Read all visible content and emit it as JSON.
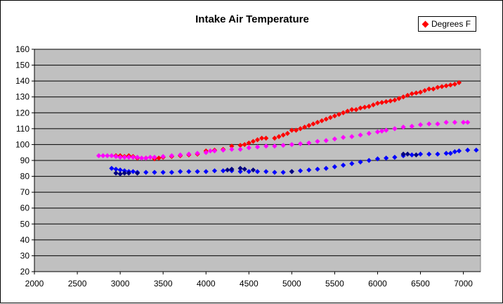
{
  "chart_data": {
    "type": "scatter",
    "title": "Intake Air Temperature",
    "xlabel": "",
    "ylabel": "",
    "xlim": [
      2000,
      7200
    ],
    "ylim": [
      20,
      160
    ],
    "xticks": [
      2000,
      2500,
      3000,
      3500,
      4000,
      4500,
      5000,
      5500,
      6000,
      6500,
      7000
    ],
    "yticks": [
      20,
      30,
      40,
      50,
      60,
      70,
      80,
      90,
      100,
      110,
      120,
      130,
      140,
      150,
      160
    ],
    "grid": "horizontal",
    "legend_position": "top-right",
    "plot_background": "#C0C0C0",
    "series": [
      {
        "name": "Degrees F",
        "color": "#FF0000",
        "marker": "diamond",
        "points": [
          [
            2950,
            93
          ],
          [
            3000,
            93
          ],
          [
            3050,
            92.5
          ],
          [
            3100,
            93
          ],
          [
            3150,
            92.5
          ],
          [
            3200,
            91.5
          ],
          [
            3300,
            91.5
          ],
          [
            3400,
            91
          ],
          [
            3450,
            91.5
          ],
          [
            3500,
            92
          ],
          [
            3600,
            92.5
          ],
          [
            3700,
            93
          ],
          [
            3800,
            93.5
          ],
          [
            3900,
            94
          ],
          [
            4000,
            96
          ],
          [
            4100,
            96.5
          ],
          [
            4200,
            97
          ],
          [
            4300,
            99
          ],
          [
            4400,
            99.5
          ],
          [
            4450,
            100
          ],
          [
            4500,
            101
          ],
          [
            4550,
            102
          ],
          [
            4600,
            103
          ],
          [
            4650,
            104
          ],
          [
            4700,
            104
          ],
          [
            4800,
            104
          ],
          [
            4850,
            105
          ],
          [
            4900,
            106
          ],
          [
            4950,
            107
          ],
          [
            5000,
            109
          ],
          [
            5050,
            109
          ],
          [
            5100,
            110
          ],
          [
            5150,
            111
          ],
          [
            5200,
            112
          ],
          [
            5250,
            113
          ],
          [
            5300,
            114
          ],
          [
            5350,
            115
          ],
          [
            5400,
            116
          ],
          [
            5450,
            117
          ],
          [
            5500,
            118
          ],
          [
            5550,
            119
          ],
          [
            5600,
            120
          ],
          [
            5650,
            121
          ],
          [
            5700,
            122
          ],
          [
            5750,
            122
          ],
          [
            5800,
            123
          ],
          [
            5850,
            123.5
          ],
          [
            5900,
            124
          ],
          [
            5950,
            125
          ],
          [
            6000,
            126
          ],
          [
            6050,
            126.5
          ],
          [
            6100,
            127
          ],
          [
            6150,
            127.5
          ],
          [
            6200,
            128
          ],
          [
            6250,
            129
          ],
          [
            6300,
            130
          ],
          [
            6350,
            131
          ],
          [
            6400,
            132
          ],
          [
            6450,
            132.5
          ],
          [
            6500,
            133
          ],
          [
            6550,
            134
          ],
          [
            6600,
            135
          ],
          [
            6650,
            135
          ],
          [
            6700,
            136
          ],
          [
            6750,
            136.5
          ],
          [
            6800,
            137
          ],
          [
            6850,
            137.5
          ],
          [
            6900,
            138
          ],
          [
            6950,
            139
          ]
        ]
      },
      {
        "color": "#FF00FF",
        "marker": "diamond",
        "points": [
          [
            2750,
            93
          ],
          [
            2800,
            93
          ],
          [
            2850,
            93
          ],
          [
            2900,
            93
          ],
          [
            2950,
            92.5
          ],
          [
            3000,
            92
          ],
          [
            3050,
            92
          ],
          [
            3100,
            92
          ],
          [
            3150,
            92
          ],
          [
            3200,
            92
          ],
          [
            3250,
            91.5
          ],
          [
            3300,
            91.5
          ],
          [
            3350,
            92
          ],
          [
            3400,
            92
          ],
          [
            3500,
            92.5
          ],
          [
            3600,
            93
          ],
          [
            3700,
            93.5
          ],
          [
            3800,
            94
          ],
          [
            3900,
            94.5
          ],
          [
            4000,
            95
          ],
          [
            4050,
            96
          ],
          [
            4100,
            96
          ],
          [
            4200,
            96.5
          ],
          [
            4300,
            97
          ],
          [
            4400,
            97
          ],
          [
            4500,
            98
          ],
          [
            4600,
            98.5
          ],
          [
            4700,
            99
          ],
          [
            4800,
            99
          ],
          [
            4900,
            99.5
          ],
          [
            5000,
            100
          ],
          [
            5100,
            100.5
          ],
          [
            5200,
            101
          ],
          [
            5300,
            102
          ],
          [
            5400,
            102.5
          ],
          [
            5500,
            103.5
          ],
          [
            5600,
            104.5
          ],
          [
            5700,
            105
          ],
          [
            5800,
            106
          ],
          [
            5900,
            107
          ],
          [
            6000,
            108
          ],
          [
            6050,
            108.5
          ],
          [
            6100,
            109
          ],
          [
            6200,
            110
          ],
          [
            6300,
            111
          ],
          [
            6400,
            111.5
          ],
          [
            6500,
            112.5
          ],
          [
            6600,
            113
          ],
          [
            6700,
            113
          ],
          [
            6800,
            114
          ],
          [
            6900,
            114
          ],
          [
            7000,
            114
          ],
          [
            7050,
            114
          ]
        ]
      },
      {
        "color": "#0000FF",
        "marker": "diamond",
        "points": [
          [
            2900,
            85
          ],
          [
            2950,
            84.5
          ],
          [
            3000,
            84
          ],
          [
            3050,
            83.5
          ],
          [
            3100,
            83
          ],
          [
            3150,
            83
          ],
          [
            3200,
            82.5
          ],
          [
            3300,
            82.5
          ],
          [
            3400,
            82.5
          ],
          [
            3500,
            82.5
          ],
          [
            3600,
            82.5
          ],
          [
            3700,
            83
          ],
          [
            3800,
            83
          ],
          [
            3900,
            83
          ],
          [
            4000,
            83
          ],
          [
            4100,
            83.5
          ],
          [
            4200,
            83.5
          ],
          [
            4300,
            83.5
          ],
          [
            4400,
            83
          ],
          [
            4500,
            83
          ],
          [
            4600,
            83
          ],
          [
            4700,
            83
          ],
          [
            4800,
            82.5
          ],
          [
            4900,
            82.5
          ],
          [
            5000,
            83
          ],
          [
            5100,
            83.5
          ],
          [
            5200,
            84
          ],
          [
            5300,
            84.5
          ],
          [
            5400,
            85
          ],
          [
            5500,
            86
          ],
          [
            5600,
            87
          ],
          [
            5700,
            88
          ],
          [
            5800,
            89
          ],
          [
            5900,
            90
          ],
          [
            6000,
            91
          ],
          [
            6100,
            91.5
          ],
          [
            6200,
            92
          ],
          [
            6300,
            93
          ],
          [
            6400,
            93.5
          ],
          [
            6500,
            94
          ],
          [
            6600,
            94
          ],
          [
            6700,
            94
          ],
          [
            6800,
            94.5
          ],
          [
            6850,
            94.5
          ],
          [
            6900,
            95.5
          ],
          [
            6950,
            96
          ],
          [
            7050,
            96.5
          ],
          [
            7150,
            96.5
          ]
        ]
      },
      {
        "color": "#000080",
        "marker": "diamond",
        "points": [
          [
            2950,
            82
          ],
          [
            3000,
            81.5
          ],
          [
            3050,
            82
          ],
          [
            3100,
            82
          ],
          [
            3200,
            82
          ],
          [
            4250,
            84
          ],
          [
            4300,
            84.5
          ],
          [
            4400,
            85
          ],
          [
            4450,
            84.5
          ],
          [
            4550,
            84
          ],
          [
            5000,
            83
          ],
          [
            6300,
            94
          ],
          [
            6350,
            94
          ],
          [
            6450,
            93.5
          ]
        ]
      }
    ]
  }
}
